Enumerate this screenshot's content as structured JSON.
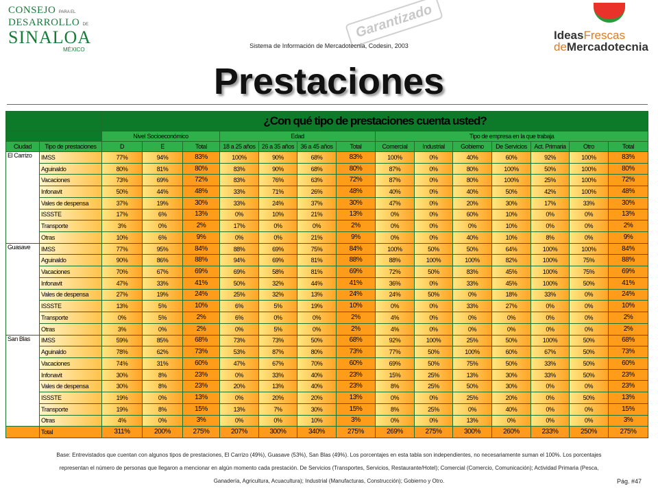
{
  "header": {
    "logo_left": [
      "CONSEJO",
      "PARA EL",
      "DESARROLLO",
      "DE",
      "SINALOA",
      "MÉXICO"
    ],
    "subtitle": "Sistema de Información de Mercadotecnia, Codesin, 2003",
    "stamp": "Garantizado",
    "logo_right": [
      "Ideas",
      "Frescas",
      "de",
      "Mercadotecnia"
    ]
  },
  "title": "Prestaciones",
  "table": {
    "question": "¿Con qué tipo de prestaciones cuenta usted?",
    "groups": [
      "Nivel Socioeconómico",
      "Edad",
      "Tipo de empresa en la que trabaja"
    ],
    "columns": [
      "Ciudad",
      "Tipo de prestaciones",
      "D",
      "E",
      "Total",
      "18 a 25 años",
      "26 a 35 años",
      "36 a 45 años",
      "Total",
      "Comercial",
      "Industrial",
      "Gobierno",
      "De Servicios",
      "Act. Primaria",
      "Otro",
      "Total"
    ],
    "sections": [
      {
        "city": "El Carrizo",
        "rows": [
          {
            "label": "IMSS",
            "values": [
              "77%",
              "94%",
              "83%",
              "100%",
              "90%",
              "68%",
              "83%",
              "100%",
              "0%",
              "40%",
              "60%",
              "92%",
              "100%",
              "83%"
            ]
          },
          {
            "label": "Aguinaldo",
            "values": [
              "80%",
              "81%",
              "80%",
              "83%",
              "90%",
              "68%",
              "80%",
              "87%",
              "0%",
              "80%",
              "100%",
              "50%",
              "100%",
              "80%"
            ]
          },
          {
            "label": "Vacaciones",
            "values": [
              "73%",
              "69%",
              "72%",
              "83%",
              "76%",
              "63%",
              "72%",
              "87%",
              "0%",
              "80%",
              "100%",
              "25%",
              "100%",
              "72%"
            ]
          },
          {
            "label": "Infonavit",
            "values": [
              "50%",
              "44%",
              "48%",
              "33%",
              "71%",
              "26%",
              "48%",
              "40%",
              "0%",
              "40%",
              "50%",
              "42%",
              "100%",
              "48%"
            ]
          },
          {
            "label": "Vales de despensa",
            "values": [
              "37%",
              "19%",
              "30%",
              "33%",
              "24%",
              "37%",
              "30%",
              "47%",
              "0%",
              "20%",
              "30%",
              "17%",
              "33%",
              "30%"
            ]
          },
          {
            "label": "ISSSTE",
            "values": [
              "17%",
              "6%",
              "13%",
              "0%",
              "10%",
              "21%",
              "13%",
              "0%",
              "0%",
              "60%",
              "10%",
              "0%",
              "0%",
              "13%"
            ]
          },
          {
            "label": "Transporte",
            "values": [
              "3%",
              "0%",
              "2%",
              "17%",
              "0%",
              "0%",
              "2%",
              "0%",
              "0%",
              "0%",
              "10%",
              "0%",
              "0%",
              "2%"
            ]
          },
          {
            "label": "Otras",
            "values": [
              "10%",
              "6%",
              "9%",
              "0%",
              "0%",
              "21%",
              "9%",
              "0%",
              "0%",
              "40%",
              "10%",
              "8%",
              "0%",
              "9%"
            ]
          }
        ]
      },
      {
        "city": "Guasave",
        "rows": [
          {
            "label": "IMSS",
            "values": [
              "77%",
              "95%",
              "84%",
              "88%",
              "69%",
              "75%",
              "84%",
              "100%",
              "50%",
              "50%",
              "64%",
              "100%",
              "100%",
              "84%"
            ]
          },
          {
            "label": "Aguinaldo",
            "values": [
              "90%",
              "86%",
              "88%",
              "94%",
              "69%",
              "81%",
              "88%",
              "88%",
              "100%",
              "100%",
              "82%",
              "100%",
              "75%",
              "88%"
            ]
          },
          {
            "label": "Vacaciones",
            "values": [
              "70%",
              "67%",
              "69%",
              "69%",
              "58%",
              "81%",
              "69%",
              "72%",
              "50%",
              "83%",
              "45%",
              "100%",
              "75%",
              "69%"
            ]
          },
          {
            "label": "Infonavit",
            "values": [
              "47%",
              "33%",
              "41%",
              "50%",
              "32%",
              "44%",
              "41%",
              "36%",
              "0%",
              "33%",
              "45%",
              "100%",
              "50%",
              "41%"
            ]
          },
          {
            "label": "Vales de despensa",
            "values": [
              "27%",
              "19%",
              "24%",
              "25%",
              "32%",
              "13%",
              "24%",
              "24%",
              "50%",
              "0%",
              "18%",
              "33%",
              "0%",
              "24%"
            ]
          },
          {
            "label": "ISSSTE",
            "values": [
              "13%",
              "5%",
              "10%",
              "6%",
              "5%",
              "19%",
              "10%",
              "0%",
              "0%",
              "33%",
              "27%",
              "0%",
              "0%",
              "10%"
            ]
          },
          {
            "label": "Transporte",
            "values": [
              "0%",
              "5%",
              "2%",
              "6%",
              "0%",
              "0%",
              "2%",
              "4%",
              "0%",
              "0%",
              "0%",
              "0%",
              "0%",
              "2%"
            ]
          },
          {
            "label": "Otras",
            "values": [
              "3%",
              "0%",
              "2%",
              "0%",
              "5%",
              "0%",
              "2%",
              "4%",
              "0%",
              "0%",
              "0%",
              "0%",
              "0%",
              "2%"
            ]
          }
        ]
      },
      {
        "city": "San Blas",
        "rows": [
          {
            "label": "IMSS",
            "values": [
              "59%",
              "85%",
              "68%",
              "73%",
              "73%",
              "50%",
              "68%",
              "92%",
              "100%",
              "25%",
              "50%",
              "100%",
              "50%",
              "68%"
            ]
          },
          {
            "label": "Aguinaldo",
            "values": [
              "78%",
              "62%",
              "73%",
              "53%",
              "87%",
              "80%",
              "73%",
              "77%",
              "50%",
              "100%",
              "60%",
              "67%",
              "50%",
              "73%"
            ]
          },
          {
            "label": "Vacaciones",
            "values": [
              "74%",
              "31%",
              "60%",
              "47%",
              "67%",
              "70%",
              "60%",
              "69%",
              "50%",
              "75%",
              "50%",
              "33%",
              "50%",
              "60%"
            ]
          },
          {
            "label": "Infonavit",
            "values": [
              "30%",
              "8%",
              "23%",
              "0%",
              "33%",
              "40%",
              "23%",
              "15%",
              "25%",
              "13%",
              "30%",
              "33%",
              "50%",
              "23%"
            ]
          },
          {
            "label": "Vales de despensa",
            "values": [
              "30%",
              "8%",
              "23%",
              "20%",
              "13%",
              "40%",
              "23%",
              "8%",
              "25%",
              "50%",
              "30%",
              "0%",
              "0%",
              "23%"
            ]
          },
          {
            "label": "ISSSTE",
            "values": [
              "19%",
              "0%",
              "13%",
              "0%",
              "20%",
              "20%",
              "13%",
              "0%",
              "0%",
              "25%",
              "20%",
              "0%",
              "50%",
              "13%"
            ]
          },
          {
            "label": "Transporte",
            "values": [
              "19%",
              "8%",
              "15%",
              "13%",
              "7%",
              "30%",
              "15%",
              "8%",
              "25%",
              "0%",
              "40%",
              "0%",
              "0%",
              "15%"
            ]
          },
          {
            "label": "Otras",
            "values": [
              "4%",
              "0%",
              "3%",
              "0%",
              "0%",
              "10%",
              "3%",
              "0%",
              "0%",
              "13%",
              "0%",
              "0%",
              "0%",
              "3%"
            ]
          }
        ]
      }
    ],
    "total": {
      "label": "Total",
      "values": [
        "311%",
        "200%",
        "275%",
        "207%",
        "300%",
        "340%",
        "275%",
        "269%",
        "275%",
        "300%",
        "260%",
        "233%",
        "250%",
        "275%"
      ]
    }
  },
  "footnote": [
    "Base: Entrevistados que cuentan con algunos tipos de prestaciones, El Carrizo (49%), Guasave (53%), San Blas (49%). Los porcentajes en esta tabla son independientes, no necesariamente suman el 100%. Los porcentajes",
    "representan el número de personas que llegaron a mencionar en algún momento cada prestación. De Servicios (Transportes, Servicios, Restaurante/Hotel); Comercial (Comercio, Comunicación); Actividad Primaria (Pesca,",
    "Ganadería, Agricultura, Acuacultura); Industrial (Manufacturas, Construcción); Gobierno y Otro."
  ],
  "page": "Pág. #47"
}
